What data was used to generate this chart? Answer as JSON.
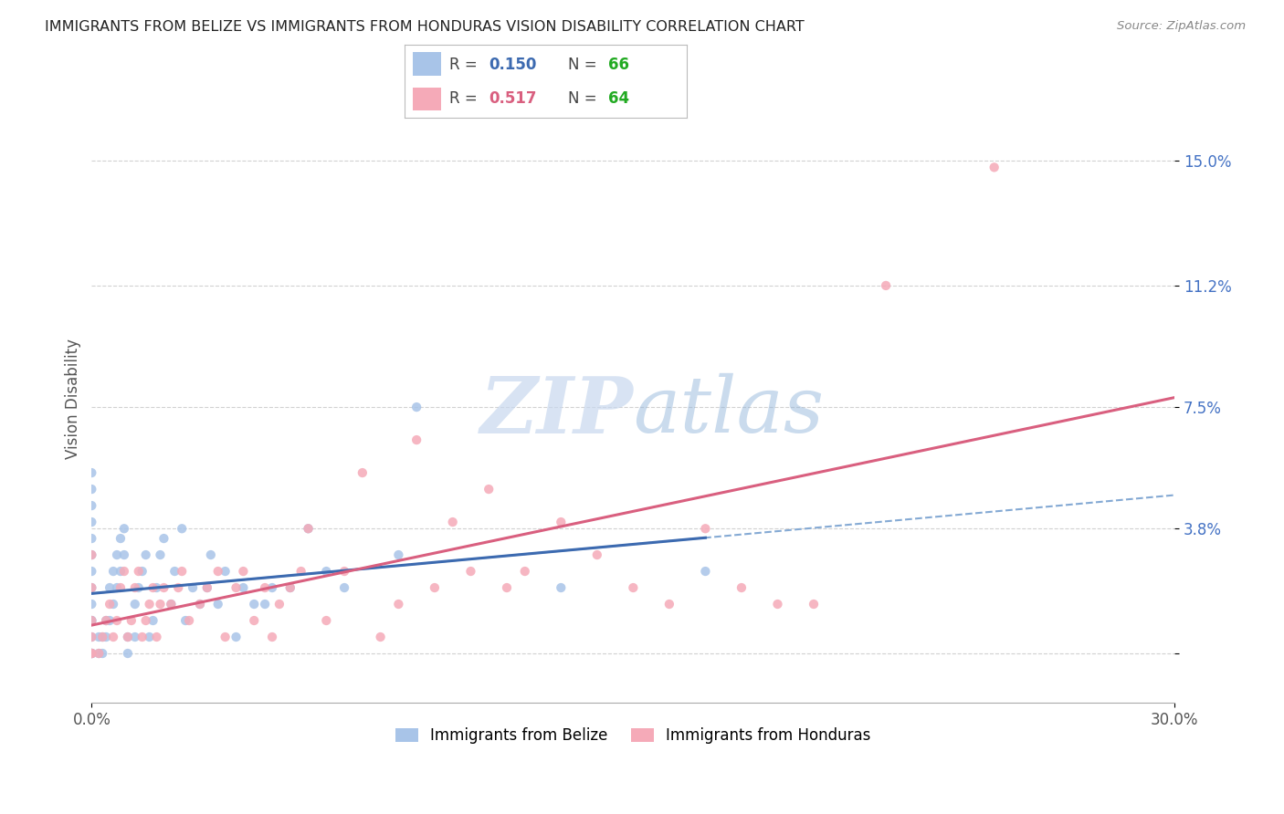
{
  "title": "IMMIGRANTS FROM BELIZE VS IMMIGRANTS FROM HONDURAS VISION DISABILITY CORRELATION CHART",
  "source": "Source: ZipAtlas.com",
  "ylabel": "Vision Disability",
  "xlim": [
    0.0,
    0.3
  ],
  "ylim": [
    -0.015,
    0.17
  ],
  "yticks": [
    0.0,
    0.038,
    0.075,
    0.112,
    0.15
  ],
  "ytick_labels": [
    "",
    "3.8%",
    "7.5%",
    "11.2%",
    "15.0%"
  ],
  "xticks": [
    0.0,
    0.3
  ],
  "xtick_labels": [
    "0.0%",
    "30.0%"
  ],
  "belize_R": "0.150",
  "belize_N": "66",
  "honduras_R": "0.517",
  "honduras_N": "64",
  "belize_color": "#a8c4e8",
  "honduras_color": "#f5aab8",
  "belize_line_color": "#3c6ab0",
  "belize_dash_color": "#85aad4",
  "honduras_line_color": "#d95f7f",
  "n_color": "#22aa22",
  "r_color_belize": "#3c6ab0",
  "r_color_honduras": "#d95f7f",
  "watermark_color": "#c8d8ee",
  "belize_x": [
    0.0,
    0.0,
    0.0,
    0.0,
    0.0,
    0.0,
    0.0,
    0.0,
    0.0,
    0.0,
    0.0,
    0.0,
    0.0,
    0.0,
    0.0,
    0.002,
    0.002,
    0.003,
    0.003,
    0.004,
    0.004,
    0.005,
    0.005,
    0.006,
    0.006,
    0.007,
    0.007,
    0.008,
    0.008,
    0.009,
    0.009,
    0.01,
    0.01,
    0.012,
    0.012,
    0.013,
    0.014,
    0.015,
    0.016,
    0.017,
    0.018,
    0.019,
    0.02,
    0.022,
    0.023,
    0.025,
    0.026,
    0.028,
    0.03,
    0.032,
    0.033,
    0.035,
    0.037,
    0.04,
    0.042,
    0.045,
    0.048,
    0.05,
    0.055,
    0.06,
    0.065,
    0.07,
    0.085,
    0.09,
    0.13,
    0.17
  ],
  "belize_y": [
    0.0,
    0.0,
    0.0,
    0.005,
    0.01,
    0.01,
    0.015,
    0.02,
    0.025,
    0.03,
    0.035,
    0.04,
    0.045,
    0.05,
    0.055,
    0.0,
    0.005,
    0.0,
    0.005,
    0.005,
    0.01,
    0.01,
    0.02,
    0.015,
    0.025,
    0.02,
    0.03,
    0.025,
    0.035,
    0.03,
    0.038,
    0.0,
    0.005,
    0.005,
    0.015,
    0.02,
    0.025,
    0.03,
    0.005,
    0.01,
    0.02,
    0.03,
    0.035,
    0.015,
    0.025,
    0.038,
    0.01,
    0.02,
    0.015,
    0.02,
    0.03,
    0.015,
    0.025,
    0.005,
    0.02,
    0.015,
    0.015,
    0.02,
    0.02,
    0.038,
    0.025,
    0.02,
    0.03,
    0.075,
    0.02,
    0.025
  ],
  "honduras_x": [
    0.0,
    0.0,
    0.0,
    0.0,
    0.0,
    0.0,
    0.002,
    0.003,
    0.004,
    0.005,
    0.006,
    0.007,
    0.008,
    0.009,
    0.01,
    0.011,
    0.012,
    0.013,
    0.014,
    0.015,
    0.016,
    0.017,
    0.018,
    0.019,
    0.02,
    0.022,
    0.024,
    0.025,
    0.027,
    0.03,
    0.032,
    0.035,
    0.037,
    0.04,
    0.042,
    0.045,
    0.048,
    0.05,
    0.052,
    0.055,
    0.058,
    0.06,
    0.065,
    0.07,
    0.075,
    0.08,
    0.085,
    0.09,
    0.095,
    0.1,
    0.105,
    0.11,
    0.115,
    0.12,
    0.13,
    0.14,
    0.15,
    0.16,
    0.17,
    0.18,
    0.19,
    0.2,
    0.22,
    0.25
  ],
  "honduras_y": [
    0.0,
    0.0,
    0.005,
    0.01,
    0.02,
    0.03,
    0.0,
    0.005,
    0.01,
    0.015,
    0.005,
    0.01,
    0.02,
    0.025,
    0.005,
    0.01,
    0.02,
    0.025,
    0.005,
    0.01,
    0.015,
    0.02,
    0.005,
    0.015,
    0.02,
    0.015,
    0.02,
    0.025,
    0.01,
    0.015,
    0.02,
    0.025,
    0.005,
    0.02,
    0.025,
    0.01,
    0.02,
    0.005,
    0.015,
    0.02,
    0.025,
    0.038,
    0.01,
    0.025,
    0.055,
    0.005,
    0.015,
    0.065,
    0.02,
    0.04,
    0.025,
    0.05,
    0.02,
    0.025,
    0.04,
    0.03,
    0.02,
    0.015,
    0.038,
    0.02,
    0.015,
    0.015,
    0.112,
    0.148
  ]
}
